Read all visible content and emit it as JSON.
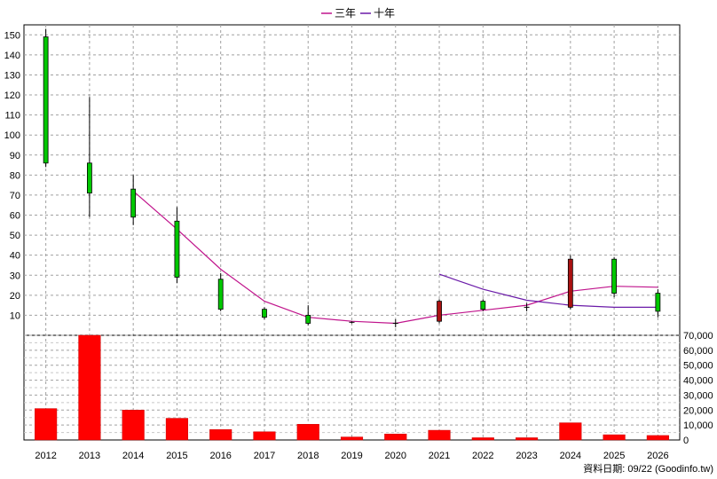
{
  "legend": {
    "three_year": {
      "label": "三年",
      "color": "#c0148c"
    },
    "ten_year": {
      "label": "十年",
      "color": "#6a1aa8"
    }
  },
  "footer": {
    "label": "資料日期:",
    "date": "09/22",
    "source": "(Goodinfo.tw)"
  },
  "chart_data": [
    {
      "type": "candlestick",
      "title": "",
      "x": [
        "2012",
        "2013",
        "2014",
        "2015",
        "2016",
        "2017",
        "2018",
        "2019",
        "2020",
        "2021",
        "2022",
        "2023",
        "2024",
        "2025",
        "2026"
      ],
      "ylim": [
        0,
        155
      ],
      "yticks": [
        10,
        20,
        30,
        40,
        50,
        60,
        70,
        80,
        90,
        100,
        110,
        120,
        130,
        140,
        150
      ],
      "grid": true,
      "candles": [
        {
          "open": 86,
          "close": 149,
          "high": 153,
          "low": 84,
          "color": "#00c800"
        },
        {
          "open": 71,
          "close": 86,
          "high": 119,
          "low": 59,
          "color": "#00c800"
        },
        {
          "open": 59,
          "close": 73,
          "high": 80,
          "low": 55,
          "color": "#00c800"
        },
        {
          "open": 29,
          "close": 57,
          "high": 64,
          "low": 26,
          "color": "#00c800"
        },
        {
          "open": 13,
          "close": 28,
          "high": 31,
          "low": 12,
          "color": "#00c800"
        },
        {
          "open": 9,
          "close": 13,
          "high": 14,
          "low": 8,
          "color": "#00c800"
        },
        {
          "open": 6,
          "close": 10,
          "high": 15,
          "low": 5,
          "color": "#00c800"
        },
        {
          "open": 6.5,
          "close": 6.5,
          "high": 7,
          "low": 6,
          "color": "#000000"
        },
        {
          "open": 6,
          "close": 6,
          "high": 8,
          "low": 4,
          "color": "#000000"
        },
        {
          "open": 17,
          "close": 7,
          "high": 18,
          "low": 6,
          "color": "#aa1111"
        },
        {
          "open": 13,
          "close": 17,
          "high": 18,
          "low": 12,
          "color": "#00c800"
        },
        {
          "open": 14,
          "close": 14,
          "high": 16,
          "low": 12,
          "color": "#000000"
        },
        {
          "open": 38,
          "close": 14,
          "high": 40,
          "low": 13,
          "color": "#aa1111"
        },
        {
          "open": 21,
          "close": 38,
          "high": 39,
          "low": 19,
          "color": "#00c800"
        },
        {
          "open": 12,
          "close": 21,
          "high": 23,
          "low": 9,
          "color": "#00c800"
        }
      ],
      "series": [
        {
          "name": "三年",
          "color": "#c0148c",
          "values": [
            null,
            null,
            72,
            53,
            33,
            17,
            9,
            7,
            6,
            10,
            12.5,
            15,
            22,
            24.5,
            24
          ]
        },
        {
          "name": "十年",
          "color": "#6a1aa8",
          "values": [
            null,
            null,
            null,
            null,
            null,
            null,
            null,
            null,
            null,
            30.5,
            23,
            17.5,
            15,
            14,
            14
          ]
        }
      ]
    },
    {
      "type": "bar",
      "x": [
        "2012",
        "2013",
        "2014",
        "2015",
        "2016",
        "2017",
        "2018",
        "2019",
        "2020",
        "2021",
        "2022",
        "2023",
        "2024",
        "2025",
        "2026"
      ],
      "values": [
        21000,
        71000,
        20000,
        14500,
        7000,
        5500,
        10500,
        2000,
        4000,
        6500,
        1500,
        1500,
        11500,
        3500,
        3000
      ],
      "ylim": [
        0,
        70000
      ],
      "yticks": [
        0,
        10000,
        20000,
        30000,
        40000,
        50000,
        60000,
        70000
      ],
      "ytick_labels": [
        "0",
        "10,000",
        "20,000",
        "30,000",
        "40,000",
        "50,000",
        "60,000",
        "70,000"
      ],
      "color": "#ff0000",
      "grid": true
    }
  ]
}
